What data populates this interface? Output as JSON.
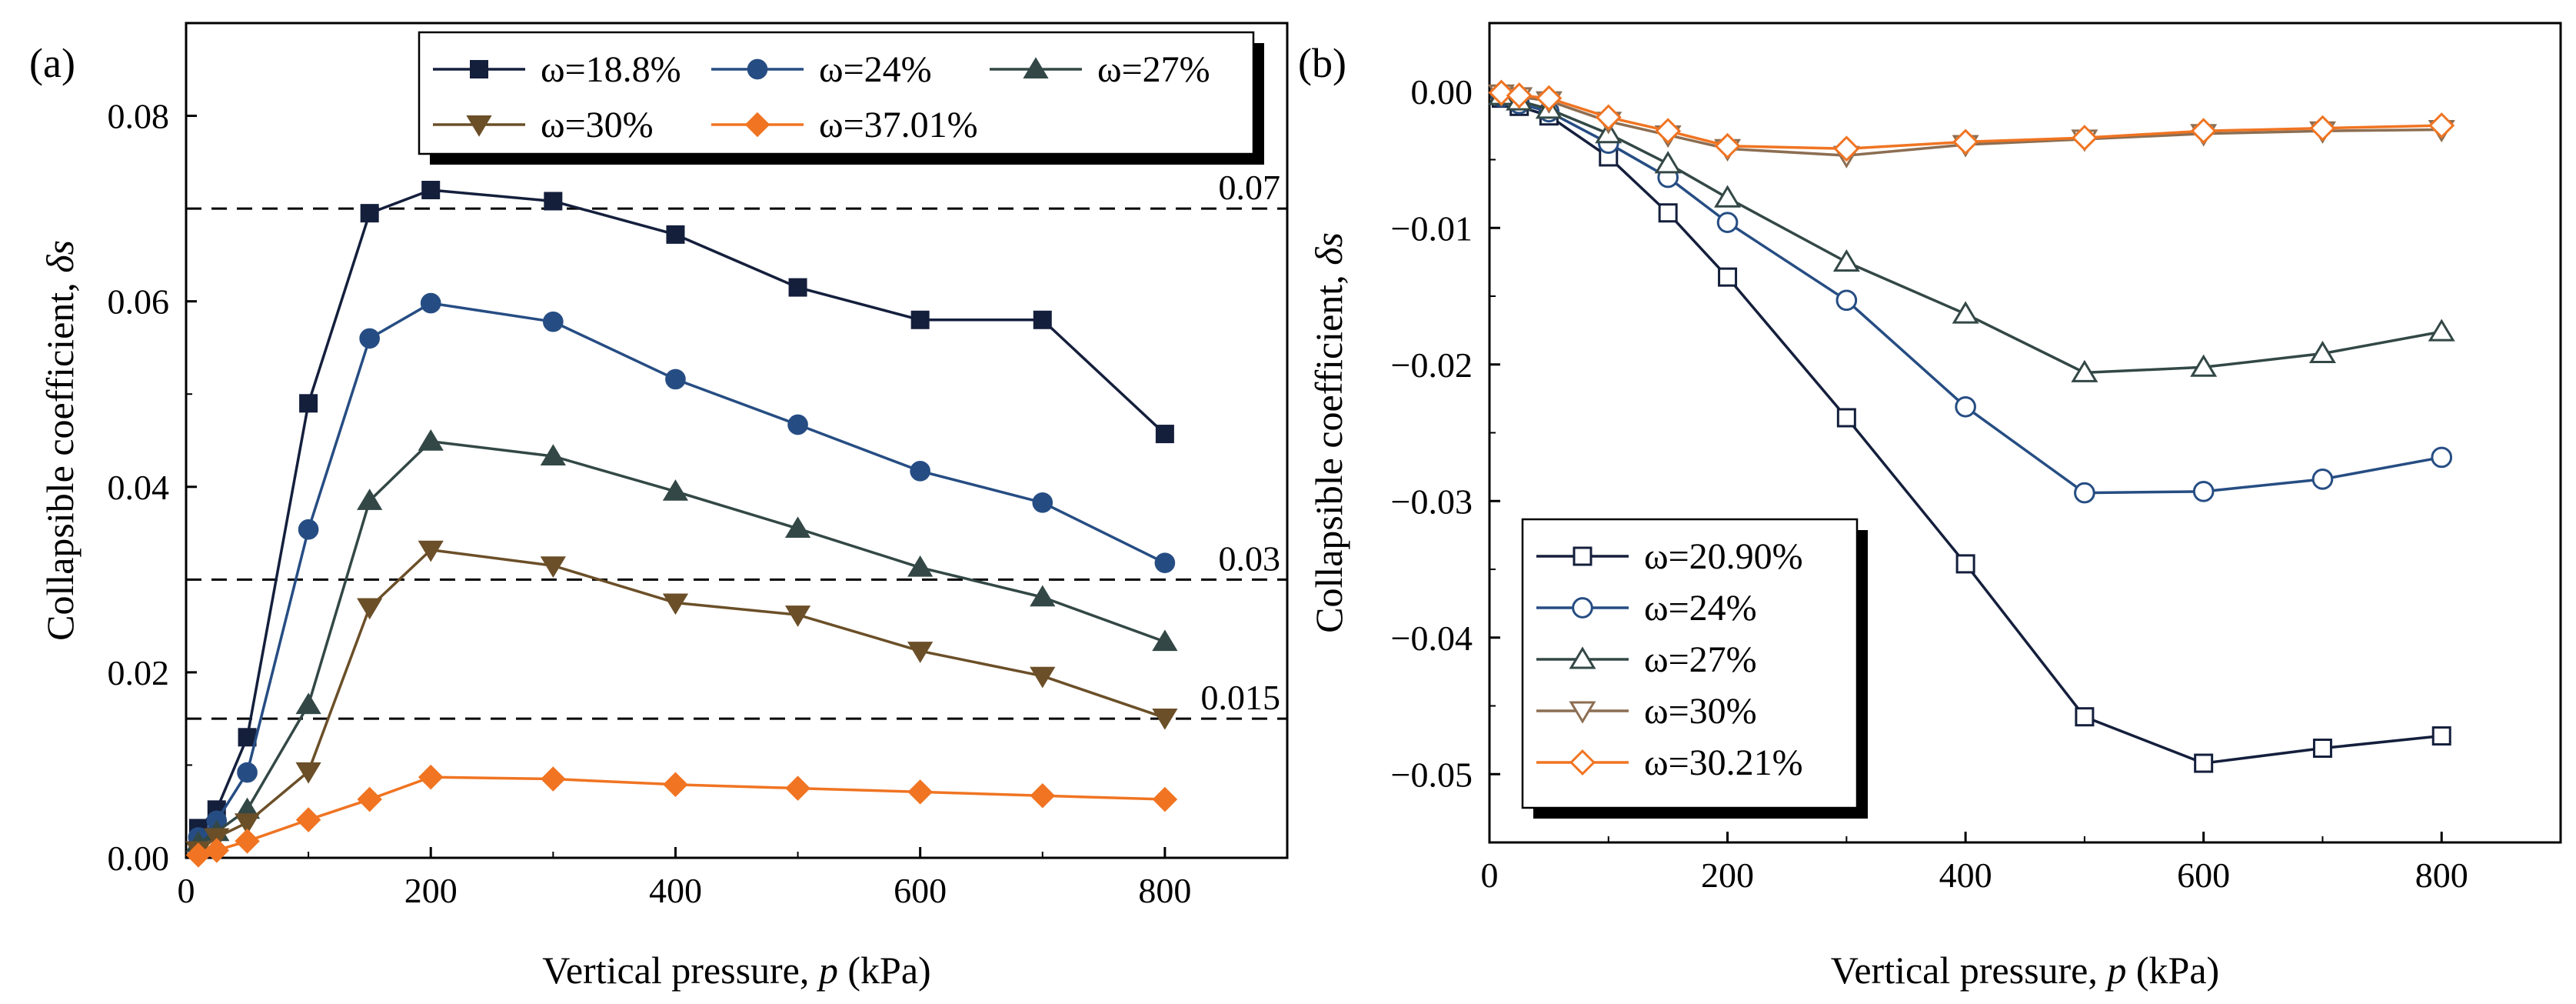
{
  "chart_data": [
    {
      "panel": "(a)",
      "type": "line",
      "xlabel_prefix": "Vertical pressure, ",
      "xlabel_var": "p",
      "xlabel_suffix": " (kPa)",
      "ylabel_prefix": "Collapsible coefficient, ",
      "ylabel_var": "δs",
      "xlim": [
        0,
        900
      ],
      "ylim": [
        0,
        0.09
      ],
      "xticks": [
        0,
        200,
        400,
        600,
        800
      ],
      "xtick_labels": [
        "0",
        "200",
        "400",
        "600",
        "800"
      ],
      "yticks": [
        0,
        0.02,
        0.04,
        0.06,
        0.08
      ],
      "ytick_labels": [
        "0.00",
        "0.02",
        "0.04",
        "0.06",
        "0.08"
      ],
      "reference_lines": [
        {
          "value": 0.07,
          "label": "0.07"
        },
        {
          "value": 0.03,
          "label": "0.03"
        },
        {
          "value": 0.015,
          "label": "0.015"
        }
      ],
      "legend_position": "top-right",
      "x": [
        10,
        25,
        50,
        100,
        150,
        200,
        300,
        400,
        500,
        600,
        700,
        800
      ],
      "series": [
        {
          "name": "ω=18.8%",
          "color": "#141f3c",
          "marker": "square",
          "filled": true,
          "values": [
            0.0032,
            0.0052,
            0.013,
            0.049,
            0.0695,
            0.072,
            0.0708,
            0.0672,
            0.0615,
            0.058,
            0.058,
            0.0457
          ]
        },
        {
          "name": "ω=24%",
          "color": "#264d83",
          "marker": "circle",
          "filled": true,
          "values": [
            0.0022,
            0.004,
            0.0092,
            0.0354,
            0.056,
            0.0598,
            0.0578,
            0.0516,
            0.0467,
            0.0417,
            0.0383,
            0.0318
          ]
        },
        {
          "name": "ω=27%",
          "color": "#334846",
          "marker": "triangle-up",
          "filled": true,
          "values": [
            0.0016,
            0.0028,
            0.0052,
            0.0165,
            0.0385,
            0.0449,
            0.0433,
            0.0395,
            0.0355,
            0.0313,
            0.0281,
            0.0233
          ]
        },
        {
          "name": "ω=30%",
          "color": "#6b4f28",
          "marker": "triangle-down",
          "filled": true,
          "values": [
            0.0008,
            0.0022,
            0.0038,
            0.0093,
            0.027,
            0.0332,
            0.0315,
            0.0275,
            0.0262,
            0.0223,
            0.0196,
            0.0151
          ]
        },
        {
          "name": "ω=37.01%",
          "color": "#f07422",
          "marker": "diamond",
          "filled": true,
          "values": [
            0.0003,
            0.0008,
            0.0018,
            0.0041,
            0.0063,
            0.0087,
            0.0085,
            0.0079,
            0.0075,
            0.0071,
            0.0067,
            0.0063
          ]
        }
      ]
    },
    {
      "panel": "(b)",
      "type": "line",
      "xlabel_prefix": "Vertical pressure, ",
      "xlabel_var": "p",
      "xlabel_suffix": " (kPa)",
      "ylabel_prefix": "Collapsible coefficient, ",
      "ylabel_var": "δs",
      "xlim": [
        0,
        900
      ],
      "ylim": [
        -0.055,
        0.005
      ],
      "xticks": [
        0,
        200,
        400,
        600,
        800
      ],
      "xtick_labels": [
        "0",
        "200",
        "400",
        "600",
        "800"
      ],
      "yticks": [
        0,
        -0.01,
        -0.02,
        -0.03,
        -0.04,
        -0.05
      ],
      "ytick_labels": [
        "0.00",
        "−0.01",
        "−0.02",
        "−0.03",
        "−0.04",
        "−0.05"
      ],
      "legend_position": "bottom-left",
      "x": [
        10,
        25,
        50,
        100,
        150,
        200,
        300,
        400,
        500,
        600,
        700,
        800
      ],
      "series": [
        {
          "name": "ω=20.90%",
          "color": "#141f3c",
          "marker": "square",
          "filled": false,
          "values": [
            -0.0005,
            -0.0011,
            -0.0018,
            -0.0048,
            -0.0089,
            -0.0136,
            -0.0239,
            -0.0346,
            -0.0458,
            -0.0492,
            -0.0481,
            -0.0472
          ]
        },
        {
          "name": "ω=24%",
          "color": "#264d83",
          "marker": "circle",
          "filled": false,
          "values": [
            -0.0004,
            -0.0009,
            -0.0015,
            -0.0038,
            -0.0063,
            -0.0096,
            -0.0153,
            -0.0231,
            -0.0294,
            -0.0293,
            -0.0284,
            -0.0268
          ]
        },
        {
          "name": "ω=27%",
          "color": "#334846",
          "marker": "triangle-up",
          "filled": false,
          "values": [
            -0.0003,
            -0.0007,
            -0.0013,
            -0.0031,
            -0.0053,
            -0.0078,
            -0.0125,
            -0.0163,
            -0.0206,
            -0.0202,
            -0.0192,
            -0.0176
          ]
        },
        {
          "name": "ω=30%",
          "color": "#8c6e52",
          "marker": "triangle-down",
          "filled": false,
          "values": [
            -0.0002,
            -0.0004,
            -0.0007,
            -0.0022,
            -0.0032,
            -0.0042,
            -0.0047,
            -0.0039,
            -0.0035,
            -0.0031,
            -0.0029,
            -0.0028
          ]
        },
        {
          "name": "ω=30.21%",
          "color": "#f07422",
          "marker": "diamond",
          "filled": false,
          "values": [
            -0.0001,
            -0.0003,
            -0.0005,
            -0.0019,
            -0.0029,
            -0.004,
            -0.0042,
            -0.0037,
            -0.0034,
            -0.0029,
            -0.0027,
            -0.0025
          ]
        }
      ]
    }
  ]
}
